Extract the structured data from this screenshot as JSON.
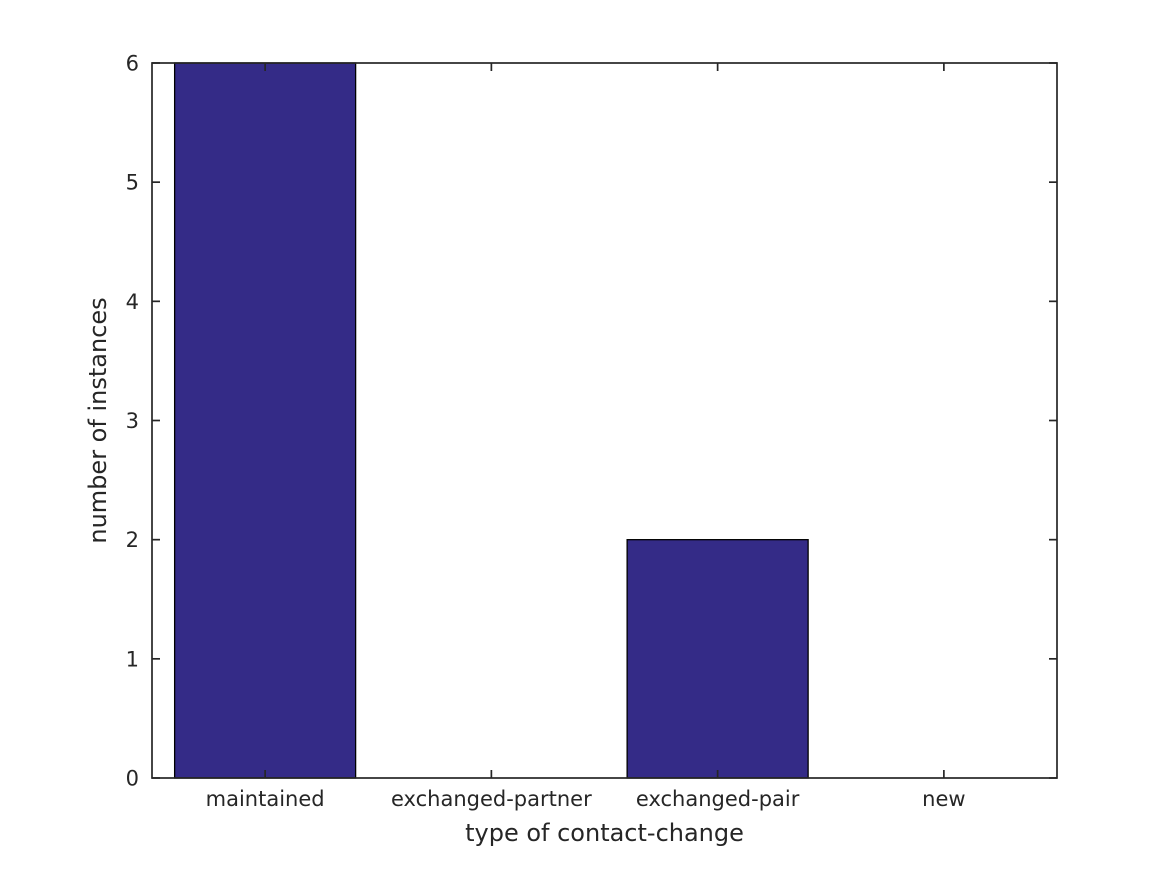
{
  "figure": {
    "background": "#ffffff"
  },
  "chart_data": {
    "type": "bar",
    "categories": [
      "maintained",
      "exchanged-partner",
      "exchanged-pair",
      "new"
    ],
    "values": [
      6,
      0,
      2,
      0
    ],
    "title": "",
    "xlabel": "type of contact-change",
    "ylabel": "number of instances",
    "ylim": [
      0,
      6
    ],
    "yticks": [
      0,
      1,
      2,
      3,
      4,
      5,
      6
    ],
    "bar_color": "#342b87",
    "bar_edge_color": "#000000",
    "axis_color": "#262626",
    "grid": "off",
    "legend": "none",
    "bar_width_fraction": 0.8,
    "tick_direction": "in",
    "box": "on"
  }
}
